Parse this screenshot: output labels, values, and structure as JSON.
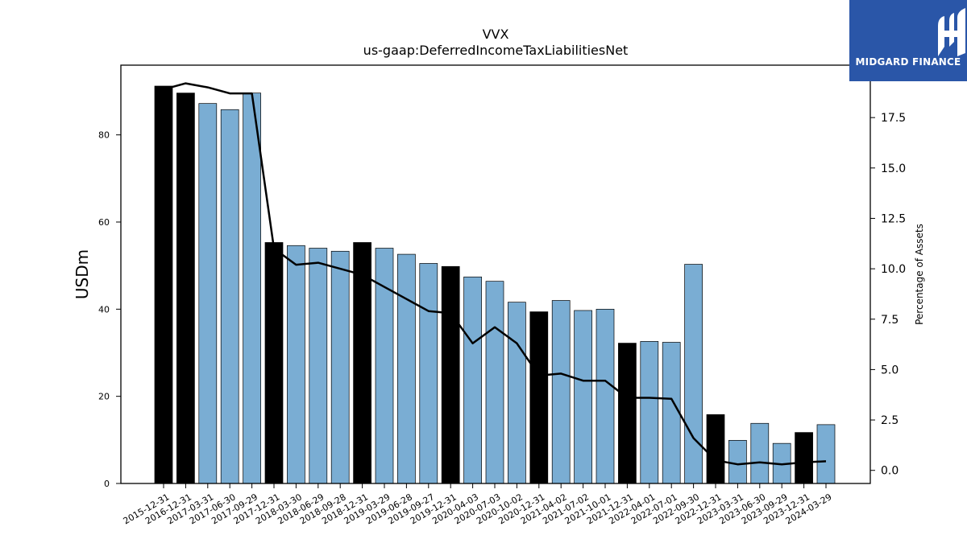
{
  "chart_data": {
    "type": "bar",
    "title": "VVX",
    "subtitle": "us-gaap:DeferredIncomeTaxLiabilitiesNet",
    "ylabel": "USDm",
    "ylabel_right": "Percentage of Assets",
    "ylim": [
      0,
      96
    ],
    "ylim_right": [
      -0.65,
      20.1
    ],
    "yticks": [
      0,
      20,
      40,
      60,
      80
    ],
    "yticks_right": [
      0.0,
      2.5,
      5.0,
      7.5,
      10.0,
      12.5,
      15.0,
      17.5
    ],
    "categories": [
      "2015-12-31",
      "2016-12-31",
      "2017-03-31",
      "2017-06-30",
      "2017-09-29",
      "2017-12-31",
      "2018-03-30",
      "2018-06-29",
      "2018-09-28",
      "2018-12-31",
      "2019-03-29",
      "2019-06-28",
      "2019-09-27",
      "2019-12-31",
      "2020-04-03",
      "2020-07-03",
      "2020-10-02",
      "2020-12-31",
      "2021-04-02",
      "2021-07-02",
      "2021-10-01",
      "2021-12-31",
      "2022-04-01",
      "2022-07-01",
      "2022-09-30",
      "2022-12-31",
      "2023-03-31",
      "2023-06-30",
      "2023-09-29",
      "2023-12-31",
      "2024-03-29"
    ],
    "series": [
      {
        "values": [
          91.2,
          89.6,
          87.2,
          85.8,
          89.6,
          55.3,
          54.6,
          54.0,
          53.3,
          55.3,
          54.0,
          52.6,
          50.5,
          49.8,
          47.4,
          46.4,
          41.6,
          39.4,
          42.0,
          39.7,
          40.0,
          32.2,
          32.6,
          32.4,
          50.3,
          15.8,
          9.9,
          13.8,
          9.2,
          11.7,
          13.5
        ],
        "annual": [
          true,
          true,
          false,
          false,
          false,
          true,
          false,
          false,
          false,
          true,
          false,
          false,
          false,
          true,
          false,
          false,
          false,
          true,
          false,
          false,
          false,
          true,
          false,
          false,
          false,
          true,
          false,
          false,
          false,
          true,
          false
        ]
      },
      {
        "axis": "right",
        "type": "line",
        "values": [
          18.9,
          19.2,
          19.0,
          18.7,
          18.7,
          11.0,
          10.2,
          10.3,
          10.0,
          9.7,
          9.1,
          8.5,
          7.9,
          7.8,
          6.3,
          7.1,
          6.3,
          4.7,
          4.8,
          4.45,
          4.45,
          3.6,
          3.6,
          3.55,
          1.6,
          0.5,
          0.3,
          0.4,
          0.3,
          0.4,
          0.45
        ]
      }
    ],
    "colors": {
      "annual_bar": "#000000",
      "quarter_bar": "#7aadd3",
      "line": "#000000"
    },
    "grid": false,
    "legend": "none"
  },
  "logo": {
    "text": "MIDGARD FINANCE",
    "color": "#2a56a8"
  }
}
